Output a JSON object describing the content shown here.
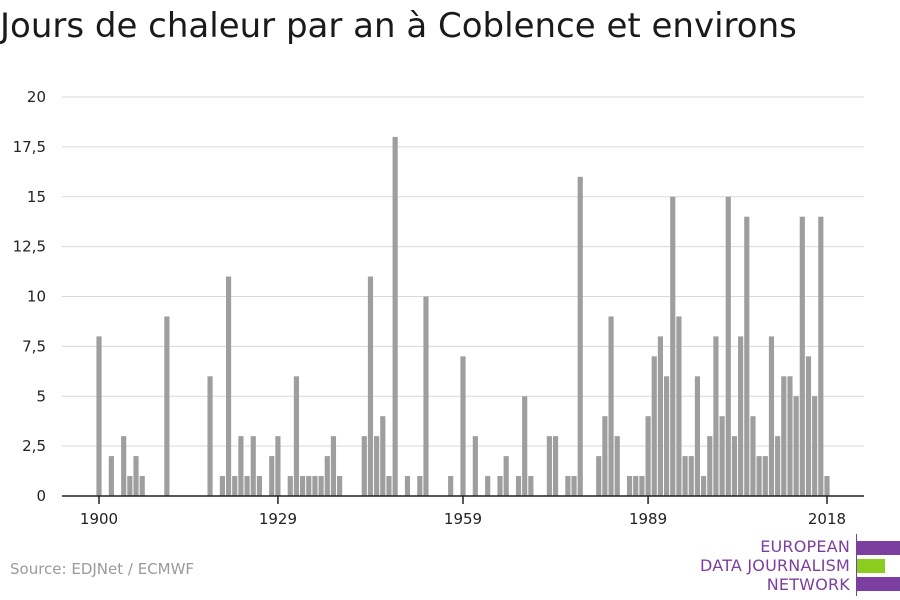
{
  "title": "Jours de chaleur par an à Coblence et environs",
  "source": "Source: EDJNet / ECMWF",
  "logo": {
    "lines": [
      "EUROPEAN",
      "DATA JOURNALISM",
      "NETWORK"
    ],
    "colors": {
      "purple": "#7b3fa0",
      "green": "#8ccc1f"
    }
  },
  "colors": {
    "bar": "#9e9e9e",
    "grid": "#d9d9d9",
    "axis": "#222222",
    "text": "#222222"
  },
  "chart_data": {
    "type": "bar",
    "title": "Jours de chaleur par an à Coblence et environs",
    "xlabel": "",
    "ylabel": "",
    "ylim": [
      0,
      20
    ],
    "xlim": [
      1894,
      2024
    ],
    "grid": true,
    "yticks": [
      0,
      2.5,
      5,
      7.5,
      10,
      12.5,
      15,
      17.5,
      20
    ],
    "ytick_labels": [
      "0",
      "2,5",
      "5",
      "7,5",
      "10",
      "12,5",
      "15",
      "17,5",
      "20"
    ],
    "xticks": [
      1900,
      1929,
      1959,
      1989,
      2018
    ],
    "xtick_labels": [
      "1900",
      "1929",
      "1959",
      "1989",
      "2018"
    ],
    "x": [
      1900,
      1902,
      1904,
      1905,
      1906,
      1907,
      1911,
      1918,
      1920,
      1921,
      1922,
      1923,
      1924,
      1925,
      1926,
      1928,
      1929,
      1931,
      1932,
      1933,
      1934,
      1935,
      1936,
      1937,
      1938,
      1939,
      1943,
      1944,
      1945,
      1946,
      1947,
      1948,
      1950,
      1952,
      1953,
      1957,
      1959,
      1961,
      1963,
      1965,
      1966,
      1968,
      1969,
      1970,
      1973,
      1974,
      1976,
      1977,
      1978,
      1981,
      1982,
      1983,
      1984,
      1986,
      1987,
      1988,
      1989,
      1990,
      1991,
      1992,
      1993,
      1994,
      1995,
      1996,
      1997,
      1998,
      1999,
      2000,
      2001,
      2002,
      2003,
      2004,
      2005,
      2006,
      2007,
      2008,
      2009,
      2010,
      2011,
      2012,
      2013,
      2014,
      2015,
      2016,
      2017,
      2018
    ],
    "values": [
      8,
      2,
      3,
      1,
      2,
      1,
      9,
      6,
      1,
      11,
      1,
      3,
      1,
      3,
      1,
      2,
      3,
      1,
      6,
      1,
      1,
      1,
      1,
      2,
      3,
      1,
      3,
      11,
      3,
      4,
      1,
      18,
      1,
      1,
      10,
      1,
      7,
      3,
      1,
      1,
      2,
      1,
      5,
      1,
      3,
      3,
      1,
      1,
      16,
      2,
      4,
      9,
      3,
      1,
      1,
      1,
      4,
      7,
      8,
      6,
      15,
      9,
      2,
      2,
      6,
      1,
      3,
      8,
      4,
      15,
      3,
      8,
      14,
      4,
      2,
      2,
      8,
      3,
      6,
      6,
      5,
      14,
      7,
      5,
      14,
      1
    ]
  }
}
